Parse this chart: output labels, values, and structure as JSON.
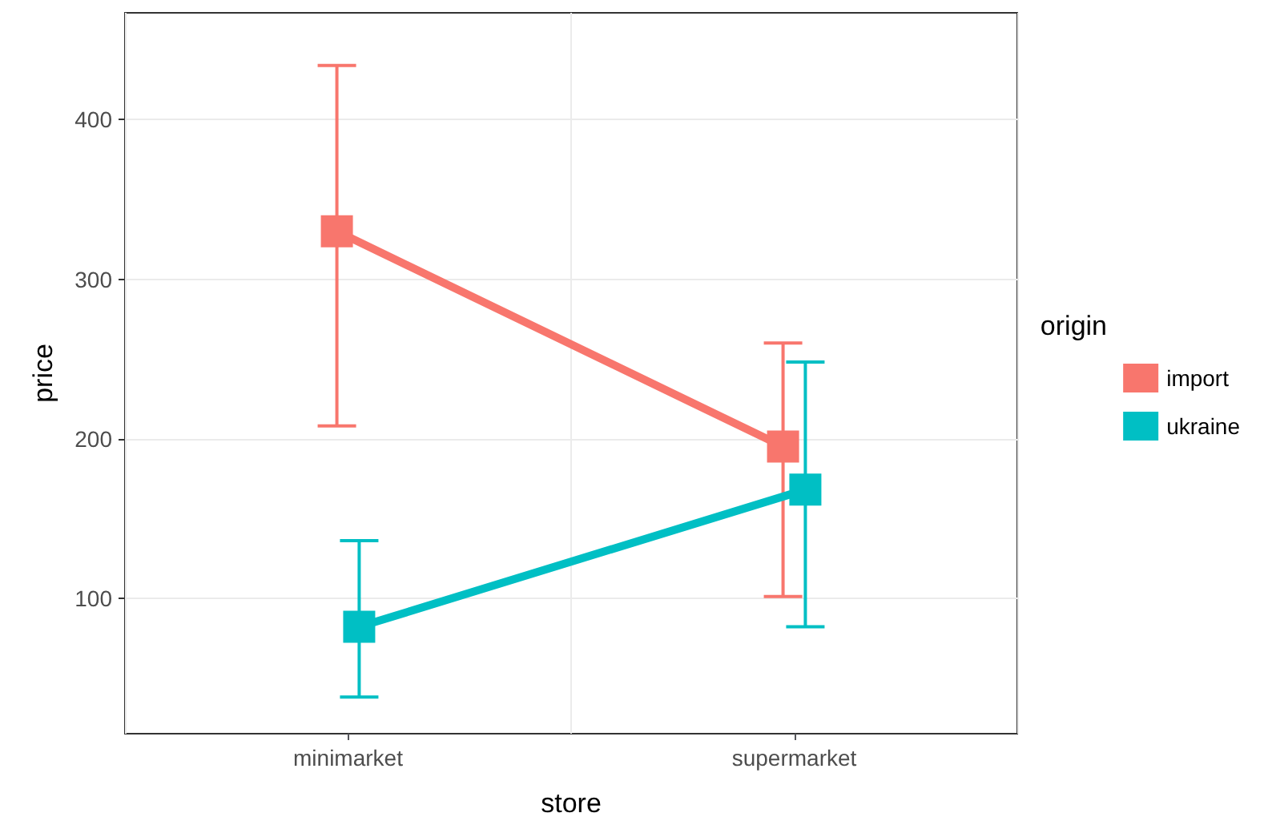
{
  "chart_data": {
    "type": "line",
    "xlabel": "store",
    "ylabel": "price",
    "legend_title": "origin",
    "categories": [
      "minimarket",
      "supermarket"
    ],
    "series": [
      {
        "name": "import",
        "color": "#f8766d",
        "values": [
          330,
          195
        ],
        "errors": [
          [
            208,
            434
          ],
          [
            101,
            260
          ]
        ]
      },
      {
        "name": "ukraine",
        "color": "#00bfc4",
        "values": [
          82,
          168
        ],
        "errors": [
          [
            38,
            136
          ],
          [
            82,
            248
          ]
        ]
      }
    ],
    "ylim": [
      15,
      467
    ],
    "yticks": [
      100,
      200,
      300,
      400
    ],
    "grid": true,
    "legend": "right",
    "marker": "square",
    "line_style": "solid"
  }
}
